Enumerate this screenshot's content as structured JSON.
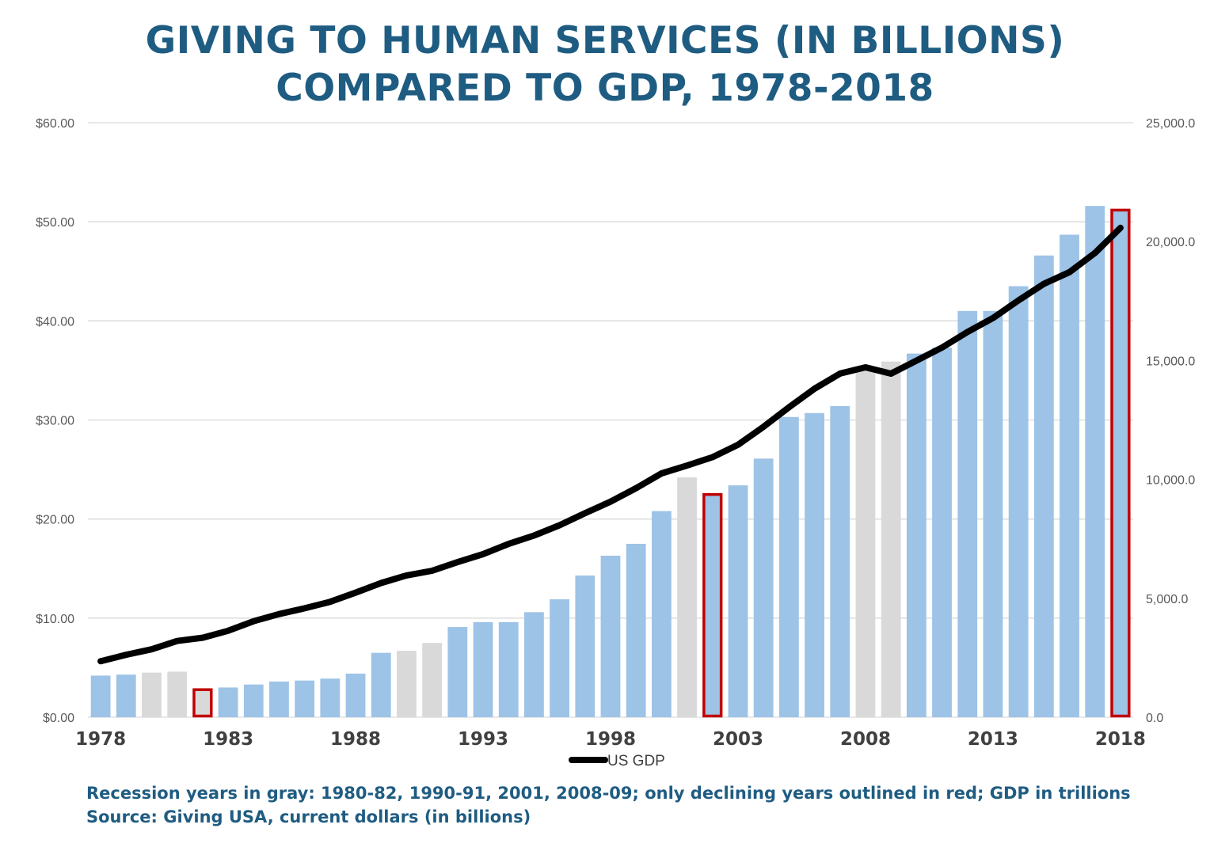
{
  "title_line1": "GIVING TO HUMAN SERVICES (IN BILLIONS)",
  "title_line2": "COMPARED TO GDP, 1978-2018",
  "footnote_line1": "Recession years in gray: 1980-82, 1990-91, 2001, 2008-09; only declining years outlined in red; GDP in trillions",
  "footnote_line2": "Source: Giving USA, current dollars (in billions)",
  "colors": {
    "bar_normal": "#9dc3e6",
    "bar_recession": "#d9d9d9",
    "decline_outline": "#c00000",
    "gdp_line": "#000000",
    "title": "#1f5c82",
    "grid": "#d9d9d9"
  },
  "chart_data": {
    "type": "bar+line",
    "years": [
      1978,
      1979,
      1980,
      1981,
      1982,
      1983,
      1984,
      1985,
      1986,
      1987,
      1988,
      1989,
      1990,
      1991,
      1992,
      1993,
      1994,
      1995,
      1996,
      1997,
      1998,
      1999,
      2000,
      2001,
      2002,
      2003,
      2004,
      2005,
      2006,
      2007,
      2008,
      2009,
      2010,
      2011,
      2012,
      2013,
      2014,
      2015,
      2016,
      2017,
      2018
    ],
    "x_tick_labels": [
      "1978",
      "1983",
      "1988",
      "1993",
      "1998",
      "2003",
      "2008",
      "2013",
      "2018"
    ],
    "y_left": {
      "min": 0,
      "max": 60,
      "ticks": [
        "$0.00",
        "$10.00",
        "$20.00",
        "$30.00",
        "$40.00",
        "$50.00",
        "$60.00"
      ]
    },
    "y_right": {
      "min": 0,
      "max": 25000,
      "ticks": [
        "0.0",
        "5,000.0",
        "10,000.0",
        "15,000.0",
        "20,000.0",
        "25,000.0"
      ]
    },
    "gridlines": true,
    "series": [
      {
        "name": "Giving to human services",
        "kind": "bar",
        "axis": "left",
        "values": [
          4.2,
          4.3,
          4.5,
          4.6,
          2.9,
          3.0,
          3.3,
          3.6,
          3.7,
          3.9,
          4.4,
          6.5,
          6.7,
          7.5,
          9.1,
          9.6,
          9.6,
          10.6,
          11.9,
          14.3,
          16.3,
          17.5,
          20.8,
          24.2,
          22.6,
          23.4,
          26.1,
          30.3,
          30.7,
          31.4,
          35.3,
          35.9,
          36.7,
          37.3,
          41.0,
          41.0,
          43.5,
          46.6,
          48.7,
          51.6,
          51.3
        ],
        "recession_years": [
          1980,
          1981,
          1982,
          1990,
          1991,
          2001,
          2008,
          2009
        ],
        "declining_years": [
          1982,
          2002,
          2018
        ]
      },
      {
        "name": "US GDP",
        "kind": "line",
        "axis": "right",
        "values": [
          2352,
          2627,
          2857,
          3207,
          3343,
          3634,
          4037,
          4339,
          4579,
          4855,
          5236,
          5641,
          5963,
          6158,
          6520,
          6858,
          7287,
          7640,
          8073,
          8578,
          9063,
          9631,
          10252,
          10582,
          10936,
          11458,
          12214,
          13037,
          13815,
          14452,
          14713,
          14449,
          14992,
          15543,
          16197,
          16785,
          17527,
          18225,
          18715,
          19519,
          20580
        ]
      }
    ],
    "legend": {
      "position": "bottom",
      "entries": [
        "US GDP"
      ]
    }
  }
}
